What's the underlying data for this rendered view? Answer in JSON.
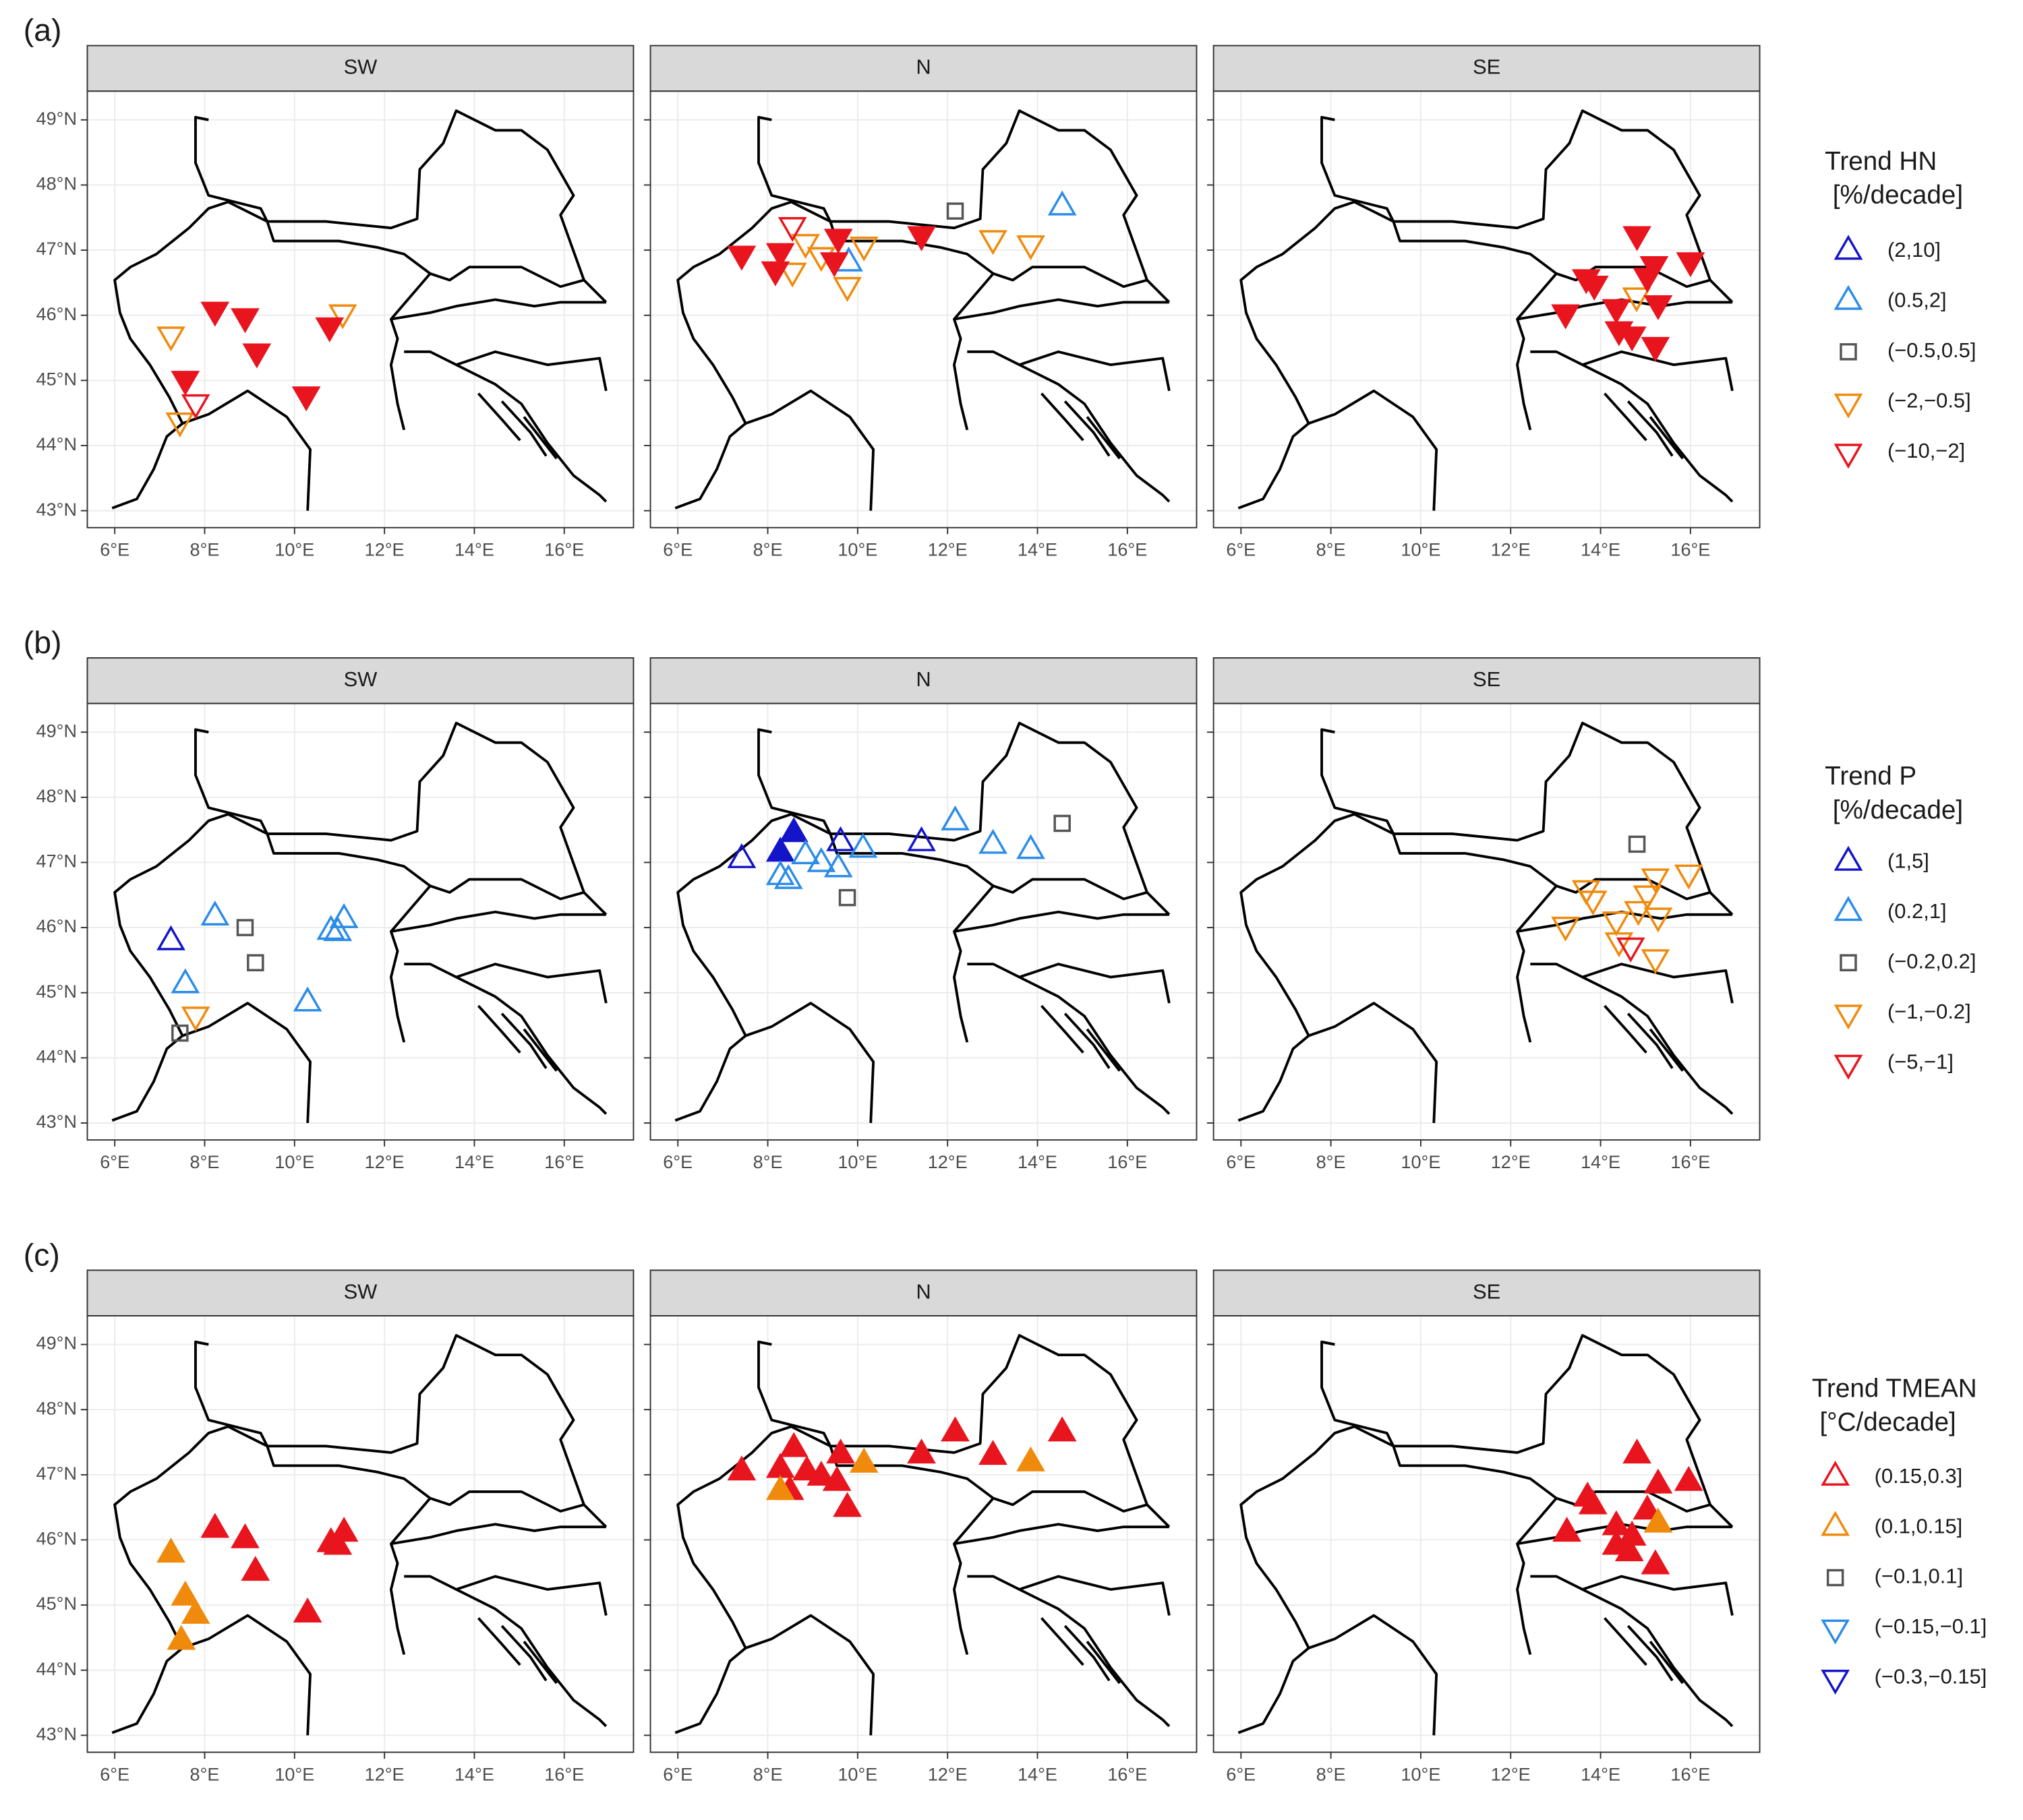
{
  "chart_data": {
    "type": "map",
    "xlim": [
      5.39,
      17.54
    ],
    "ylim": [
      42.74,
      49.44
    ],
    "xticks": [
      {
        "value": 6,
        "label": "6°E"
      },
      {
        "value": 8,
        "label": "8°E"
      },
      {
        "value": 10,
        "label": "10°E"
      },
      {
        "value": 12,
        "label": "12°E"
      },
      {
        "value": 14,
        "label": "14°E"
      },
      {
        "value": 16,
        "label": "16°E"
      }
    ],
    "yticks": [
      {
        "value": 43,
        "label": "43°N"
      },
      {
        "value": 44,
        "label": "44°N"
      },
      {
        "value": 45,
        "label": "45°N"
      },
      {
        "value": 46,
        "label": "46°N"
      },
      {
        "value": 47,
        "label": "47°N"
      },
      {
        "value": 48,
        "label": "48°N"
      },
      {
        "value": 49,
        "label": "49°N"
      }
    ],
    "grid": true,
    "panels": [
      {
        "label": "(a)",
        "legend": {
          "title": [
            "Trend HN",
            "[%/decade]"
          ],
          "items": [
            {
              "label": "(2,10]",
              "color": "#1414c8",
              "shape": "triangle-up"
            },
            {
              "label": "(0.5,2]",
              "color": "#2b8ce8",
              "shape": "triangle-up"
            },
            {
              "label": "(−0.5,0.5]",
              "color": "#555555",
              "shape": "square"
            },
            {
              "label": "(−2,−0.5]",
              "color": "#f08a0c",
              "shape": "triangle-down"
            },
            {
              "label": "(−10,−2]",
              "color": "#e8141e",
              "shape": "triangle-down"
            }
          ]
        },
        "facets": [
          {
            "name": "SW",
            "series": [
              {
                "lon": [],
                "lat": [],
                "filled": []
              },
              {
                "lon": [],
                "lat": [],
                "filled": []
              },
              {
                "lon": [],
                "lat": [],
                "filled": []
              },
              {
                "lon": [
                  7.25,
                  7.45,
                  11.07
                ],
                "lat": [
                  45.7,
                  44.38,
                  46.04
                ],
                "filled": [
                  false,
                  false,
                  false
                ]
              },
              {
                "lon": [
                  8.23,
                  8.9,
                  9.16,
                  7.57,
                  7.8,
                  10.26,
                  10.78
                ],
                "lat": [
                  46.08,
                  45.98,
                  45.44,
                  45.02,
                  44.66,
                  44.78,
                  45.84
                ],
                "filled": [
                  true,
                  true,
                  true,
                  true,
                  false,
                  true,
                  true
                ]
              }
            ]
          },
          {
            "name": "N",
            "series": [
              {
                "lon": [],
                "lat": [],
                "filled": []
              },
              {
                "lon": [
                  9.8,
                  14.55
                ],
                "lat": [
                  46.8,
                  47.66
                ],
                "filled": [
                  false,
                  false
                ]
              },
              {
                "lon": [
                  12.17
                ],
                "lat": [
                  47.6
                ],
                "filled": [
                  false
                ]
              },
              {
                "lon": [
                  8.55,
                  8.84,
                  9.19,
                  9.77,
                  10.14,
                  13.01,
                  13.85
                ],
                "lat": [
                  46.68,
                  47.12,
                  46.92,
                  46.46,
                  47.08,
                  47.18,
                  47.1
                ],
                "filled": [
                  false,
                  false,
                  false,
                  false,
                  false,
                  false,
                  false
                ]
              },
              {
                "lon": [
                  7.42,
                  8.28,
                  8.17,
                  8.55,
                  9.57,
                  9.48,
                  11.42
                ],
                "lat": [
                  46.94,
                  46.98,
                  46.7,
                  47.38,
                  47.2,
                  46.84,
                  47.24
                ],
                "filled": [
                  true,
                  true,
                  true,
                  false,
                  true,
                  true,
                  true
                ]
              }
            ]
          },
          {
            "name": "SE",
            "series": [
              {
                "lon": [],
                "lat": [],
                "filled": []
              },
              {
                "lon": [],
                "lat": [],
                "filled": []
              },
              {
                "lon": [],
                "lat": [],
                "filled": []
              },
              {
                "lon": [
                  14.8
                ],
                "lat": [
                  46.3
                ],
                "filled": [
                  false
                ]
              },
              {
                "lon": [
                  13.22,
                  13.68,
                  13.86,
                  14.35,
                  14.41,
                  14.7,
                  14.81,
                  15.04,
                  15.19,
                  15.28,
                  15.22,
                  16.0
                ],
                "lat": [
                  46.04,
                  46.58,
                  46.48,
                  46.12,
                  45.78,
                  45.7,
                  47.24,
                  46.6,
                  46.78,
                  46.18,
                  45.54,
                  46.84
                ],
                "filled": [
                  true,
                  true,
                  true,
                  true,
                  true,
                  true,
                  true,
                  true,
                  true,
                  true,
                  true,
                  true
                ]
              }
            ]
          }
        ]
      },
      {
        "label": "(b)",
        "legend": {
          "title": [
            "Trend P",
            "[%/decade]"
          ],
          "items": [
            {
              "label": "(1,5]",
              "color": "#1414c8",
              "shape": "triangle-up"
            },
            {
              "label": "(0.2,1]",
              "color": "#2b8ce8",
              "shape": "triangle-up"
            },
            {
              "label": "(−0.2,0.2]",
              "color": "#555555",
              "shape": "square"
            },
            {
              "label": "(−1,−0.2]",
              "color": "#f08a0c",
              "shape": "triangle-down"
            },
            {
              "label": "(−5,−1]",
              "color": "#e8141e",
              "shape": "triangle-down"
            }
          ]
        },
        "facets": [
          {
            "name": "SW",
            "series": [
              {
                "lon": [
                  7.25
                ],
                "lat": [
                  45.78
                ],
                "filled": [
                  false
                ]
              },
              {
                "lon": [
                  8.23,
                  7.57,
                  10.29,
                  10.81,
                  11.1,
                  10.96
                ],
                "lat": [
                  46.16,
                  45.12,
                  44.84,
                  45.94,
                  46.12,
                  45.92
                ],
                "filled": [
                  false,
                  false,
                  false,
                  false,
                  false,
                  false
                ]
              },
              {
                "lon": [
                  8.9,
                  9.13,
                  7.45
                ],
                "lat": [
                  46.0,
                  45.46,
                  44.38
                ],
                "filled": [
                  false,
                  false,
                  false
                ]
              },
              {
                "lon": [
                  7.8
                ],
                "lat": [
                  44.66
                ],
                "filled": [
                  false
                ]
              },
              {
                "lon": [],
                "lat": [],
                "filled": []
              }
            ]
          },
          {
            "name": "N",
            "series": [
              {
                "lon": [
                  7.42,
                  8.28,
                  8.58,
                  9.62,
                  11.42
                ],
                "lat": [
                  47.04,
                  47.14,
                  47.44,
                  47.3,
                  47.3
                ],
                "filled": [
                  false,
                  true,
                  true,
                  false,
                  false
                ]
              },
              {
                "lon": [
                  8.28,
                  8.46,
                  8.84,
                  9.19,
                  9.57,
                  10.12,
                  12.17,
                  13.01,
                  13.85
                ],
                "lat": [
                  46.78,
                  46.72,
                  47.1,
                  46.98,
                  46.9,
                  47.2,
                  47.62,
                  47.26,
                  47.18
                ],
                "filled": [
                  false,
                  false,
                  false,
                  false,
                  false,
                  false,
                  false,
                  false,
                  false
                ]
              },
              {
                "lon": [
                  9.77,
                  14.55
                ],
                "lat": [
                  46.46,
                  47.6
                ],
                "filled": [
                  false,
                  false
                ]
              },
              {
                "lon": [],
                "lat": [],
                "filled": []
              },
              {
                "lon": [],
                "lat": [],
                "filled": []
              }
            ]
          },
          {
            "name": "SE",
            "series": [
              {
                "lon": [],
                "lat": [],
                "filled": []
              },
              {
                "lon": [],
                "lat": [],
                "filled": []
              },
              {
                "lon": [
                  14.81
                ],
                "lat": [
                  47.28
                ],
                "filled": [
                  false
                ]
              },
              {
                "lon": [
                  13.22,
                  13.68,
                  13.83,
                  14.35,
                  14.41,
                  15.04,
                  15.22,
                  15.28,
                  15.22,
                  15.96,
                  14.84
                ],
                "lat": [
                  46.04,
                  46.6,
                  46.44,
                  46.12,
                  45.8,
                  46.52,
                  46.78,
                  46.18,
                  45.54,
                  46.84,
                  46.28
                ],
                "filled": [
                  false,
                  false,
                  false,
                  false,
                  false,
                  false,
                  false,
                  false,
                  false,
                  false,
                  false
                ]
              },
              {
                "lon": [
                  14.67
                ],
                "lat": [
                  45.72
                ],
                "filled": [
                  false
                ]
              }
            ]
          }
        ]
      },
      {
        "label": "(c)",
        "legend": {
          "title": [
            "Trend TMEAN",
            "[°C/decade]"
          ],
          "items": [
            {
              "label": "(0.15,0.3]",
              "color": "#e8141e",
              "shape": "triangle-up"
            },
            {
              "label": "(0.1,0.15]",
              "color": "#f08a0c",
              "shape": "triangle-up"
            },
            {
              "label": "(−0.1,0.1]",
              "color": "#555555",
              "shape": "square"
            },
            {
              "label": "(−0.15,−0.1]",
              "color": "#2b8ce8",
              "shape": "triangle-down"
            },
            {
              "label": "(−0.3,−0.15]",
              "color": "#1414c8",
              "shape": "triangle-down"
            }
          ]
        },
        "facets": [
          {
            "name": "SW",
            "series": [
              {
                "lon": [
                  8.23,
                  8.9,
                  9.13,
                  10.29,
                  10.81,
                  11.1,
                  10.96
                ],
                "lat": [
                  46.16,
                  46.0,
                  45.5,
                  44.86,
                  45.94,
                  46.1,
                  45.9
                ],
                "filled": [
                  true,
                  true,
                  true,
                  true,
                  true,
                  true,
                  true
                ]
              },
              {
                "lon": [
                  7.25,
                  7.57,
                  7.8,
                  7.48
                ],
                "lat": [
                  45.78,
                  45.12,
                  44.84,
                  44.44
                ],
                "filled": [
                  true,
                  true,
                  true,
                  true
                ]
              },
              {
                "lon": [],
                "lat": [],
                "filled": []
              },
              {
                "lon": [],
                "lat": [],
                "filled": []
              },
              {
                "lon": [],
                "lat": [],
                "filled": []
              }
            ]
          },
          {
            "name": "N",
            "series": [
              {
                "lon": [
                  7.42,
                  8.28,
                  8.58,
                  8.49,
                  8.87,
                  9.19,
                  9.62,
                  9.54,
                  9.77,
                  11.42,
                  12.17,
                  13.01,
                  14.55
                ],
                "lat": [
                  47.04,
                  47.08,
                  47.4,
                  46.74,
                  47.04,
                  46.96,
                  47.3,
                  46.88,
                  46.48,
                  47.3,
                  47.64,
                  47.28,
                  47.64
                ],
                "filled": [
                  true,
                  true,
                  true,
                  true,
                  true,
                  true,
                  true,
                  true,
                  true,
                  true,
                  true,
                  true,
                  true
                ]
              },
              {
                "lon": [
                  8.28,
                  10.14,
                  13.85
                ],
                "lat": [
                  46.74,
                  47.16,
                  47.18
                ],
                "filled": [
                  true,
                  true,
                  true
                ]
              },
              {
                "lon": [],
                "lat": [],
                "filled": []
              },
              {
                "lon": [],
                "lat": [],
                "filled": []
              },
              {
                "lon": [],
                "lat": [],
                "filled": []
              }
            ]
          },
          {
            "name": "SE",
            "series": [
              {
                "lon": [
                  13.25,
                  13.71,
                  13.83,
                  14.35,
                  14.35,
                  14.64,
                  14.81,
                  15.04,
                  15.28,
                  15.22,
                  15.96,
                  14.7
                ],
                "lat": [
                  46.1,
                  46.64,
                  46.52,
                  46.2,
                  45.9,
                  45.8,
                  47.3,
                  46.44,
                  46.84,
                  45.6,
                  46.88,
                  46.04
                ],
                "filled": [
                  true,
                  true,
                  true,
                  true,
                  true,
                  true,
                  true,
                  true,
                  true,
                  true,
                  true,
                  true
                ]
              },
              {
                "lon": [
                  15.28
                ],
                "lat": [
                  46.24
                ],
                "filled": [
                  true
                ]
              },
              {
                "lon": [],
                "lat": [],
                "filled": []
              },
              {
                "lon": [],
                "lat": [],
                "filled": []
              },
              {
                "lon": [],
                "lat": [],
                "filled": []
              }
            ]
          }
        ]
      }
    ]
  }
}
